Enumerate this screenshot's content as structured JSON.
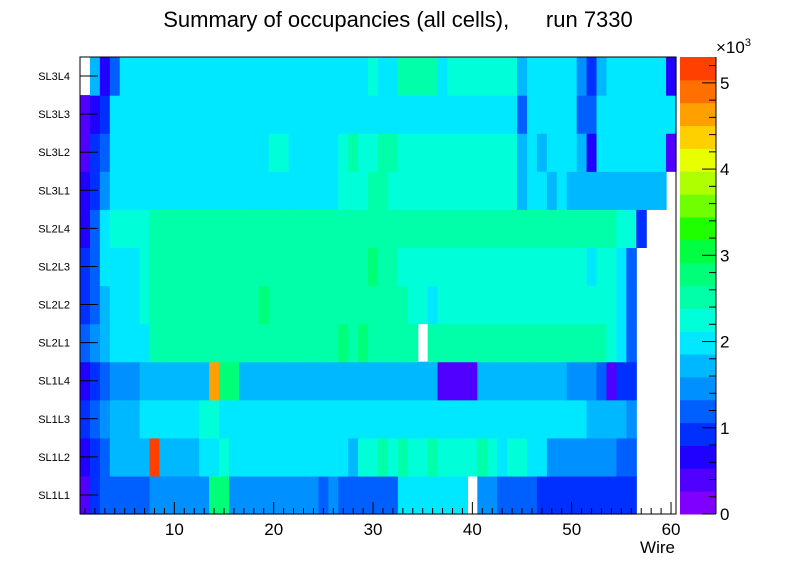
{
  "chart_data": {
    "type": "heatmap",
    "title": "Summary of occupancies (all cells),      run 7330",
    "xlabel": "Wire",
    "ylabel": "",
    "x_range": [
      0.5,
      60.5
    ],
    "x_ticks": [
      "10",
      "20",
      "30",
      "40",
      "50",
      "60"
    ],
    "x_tick_values": [
      10,
      20,
      30,
      40,
      50,
      60
    ],
    "layers": [
      "SL1L1",
      "SL1L2",
      "SL1L3",
      "SL1L4",
      "SL2L1",
      "SL2L2",
      "SL2L3",
      "SL2L4",
      "SL3L1",
      "SL3L2",
      "SL3L3",
      "SL3L4"
    ],
    "z_range": [
      0,
      5300
    ],
    "z_multiplier": "×10",
    "z_exponent": "3",
    "z_ticks": [
      "0",
      "1",
      "2",
      "3",
      "4",
      "5"
    ],
    "z_tick_values": [
      0,
      1000,
      2000,
      3000,
      4000,
      5000
    ],
    "palette": [
      "#8000ff",
      "#5000ff",
      "#2000ff",
      "#0030ff",
      "#0060ff",
      "#0090ff",
      "#00b8ff",
      "#00e8ff",
      "#00ffd8",
      "#00ffa8",
      "#00ff78",
      "#00ff40",
      "#20ff00",
      "#70ff00",
      "#b0ff00",
      "#e8ff00",
      "#ffd000",
      "#ffa000",
      "#ff7000",
      "#ff4000"
    ],
    "grid": false,
    "values": [
      [
        300,
        800,
        1300,
        1300,
        1300,
        1100,
        1200,
        1400,
        1400,
        1400,
        1400,
        1400,
        1500,
        2900,
        2900,
        1400,
        1400,
        1400,
        1400,
        1400,
        1400,
        1400,
        1400,
        1400,
        1300,
        1400,
        1300,
        1300,
        1300,
        1300,
        1200,
        1300,
        2100,
        2100,
        2100,
        2100,
        2100,
        2100,
        2100,
        null,
        1500,
        1500,
        1100,
        1100,
        1100,
        1100,
        800,
        800,
        800,
        800,
        800,
        800,
        800,
        800,
        800,
        800,
        null,
        null,
        null,
        null
      ],
      [
        700,
        1000,
        1200,
        1600,
        1600,
        1600,
        1600,
        5200,
        1600,
        1600,
        1600,
        1600,
        2000,
        2100,
        2300,
        2100,
        2100,
        2100,
        2100,
        2100,
        2100,
        2100,
        2100,
        2100,
        2100,
        1900,
        2100,
        1800,
        2300,
        2200,
        2400,
        2300,
        2400,
        2300,
        2300,
        2400,
        2300,
        2300,
        2300,
        2200,
        2400,
        2300,
        2100,
        2300,
        2200,
        2100,
        2000,
        1400,
        1400,
        1400,
        1400,
        1400,
        1400,
        1400,
        1200,
        1200,
        null,
        null,
        null,
        null
      ],
      [
        800,
        1100,
        1400,
        1700,
        1700,
        1700,
        2000,
        2000,
        2000,
        2000,
        2000,
        2000,
        2200,
        2200,
        1900,
        1900,
        1900,
        1900,
        2000,
        2000,
        2000,
        2000,
        1900,
        1900,
        1900,
        2000,
        2000,
        2000,
        2000,
        2000,
        2000,
        2000,
        2000,
        2000,
        2000,
        2000,
        2000,
        2000,
        2000,
        2000,
        2000,
        2000,
        2000,
        2000,
        2000,
        2000,
        2000,
        1900,
        1900,
        1900,
        1900,
        1600,
        1600,
        1600,
        1600,
        1400,
        null,
        null,
        null,
        null
      ],
      [
        700,
        1000,
        1200,
        1500,
        1500,
        1500,
        1700,
        1700,
        1700,
        1700,
        1700,
        1700,
        1700,
        4700,
        2800,
        2800,
        1800,
        1800,
        1800,
        1800,
        1800,
        1800,
        1800,
        1800,
        1800,
        1700,
        1800,
        1800,
        1700,
        1800,
        1800,
        1800,
        1800,
        1700,
        1800,
        1800,
        400,
        400,
        400,
        400,
        1800,
        1800,
        1800,
        1800,
        1800,
        1800,
        1700,
        1700,
        1700,
        1400,
        1400,
        1400,
        1200,
        500,
        1000,
        1000,
        null,
        null,
        null,
        null
      ],
      [
        1100,
        1500,
        1800,
        1900,
        1900,
        1900,
        2000,
        2500,
        2500,
        2500,
        2500,
        2500,
        2500,
        2500,
        2500,
        2500,
        2500,
        2500,
        2500,
        2500,
        2500,
        2500,
        2500,
        2500,
        2500,
        2500,
        2900,
        2500,
        2700,
        2500,
        2500,
        2500,
        2500,
        2500,
        null,
        2500,
        2500,
        2500,
        2500,
        2500,
        2500,
        2500,
        2500,
        2500,
        2500,
        2500,
        2500,
        2500,
        2500,
        2500,
        2500,
        2500,
        2500,
        2300,
        2000,
        1200,
        null,
        null,
        null,
        null
      ],
      [
        900,
        1300,
        1700,
        2000,
        2000,
        2000,
        2300,
        2500,
        2500,
        2500,
        2500,
        2500,
        2500,
        2500,
        2500,
        2500,
        2500,
        2500,
        2900,
        2500,
        2500,
        2500,
        2500,
        2500,
        2500,
        2500,
        2500,
        2500,
        2500,
        2500,
        2500,
        2500,
        2500,
        2300,
        2300,
        1900,
        2300,
        2300,
        2300,
        2300,
        2300,
        2300,
        2300,
        2300,
        2300,
        2300,
        2300,
        2300,
        2300,
        2300,
        2300,
        2300,
        2300,
        2200,
        1900,
        1100,
        null,
        null,
        null,
        null
      ],
      [
        800,
        1300,
        1900,
        2100,
        2100,
        2100,
        2300,
        2400,
        2500,
        2500,
        2500,
        2500,
        2500,
        2500,
        2500,
        2500,
        2500,
        2500,
        2500,
        2500,
        2500,
        2500,
        2500,
        2500,
        2500,
        2500,
        2500,
        2500,
        2500,
        2900,
        2500,
        2500,
        2300,
        2300,
        2300,
        2200,
        2200,
        2200,
        2200,
        2200,
        2200,
        2200,
        2200,
        2200,
        2200,
        2200,
        2200,
        2200,
        2200,
        2200,
        2200,
        2100,
        2300,
        2200,
        1900,
        1100,
        null,
        null,
        null,
        null
      ],
      [
        700,
        1200,
        1900,
        2300,
        2300,
        2300,
        2300,
        2500,
        2500,
        2500,
        2500,
        2500,
        2500,
        2500,
        2500,
        2500,
        2500,
        2500,
        2500,
        2500,
        2500,
        2500,
        2500,
        2500,
        2500,
        2500,
        2500,
        2500,
        2500,
        2500,
        2500,
        2500,
        2500,
        2500,
        2500,
        2500,
        2500,
        2500,
        2500,
        2500,
        2500,
        2500,
        2500,
        2500,
        2500,
        2500,
        2500,
        2500,
        2500,
        2500,
        2500,
        2500,
        2500,
        2500,
        2300,
        2300,
        1000,
        null,
        null,
        null
      ],
      [
        700,
        1000,
        1400,
        1900,
        1900,
        2000,
        2000,
        2000,
        2000,
        2000,
        2000,
        2000,
        2000,
        2000,
        2000,
        2000,
        2000,
        2000,
        2000,
        2000,
        2000,
        2000,
        2000,
        2000,
        2000,
        2000,
        2300,
        2300,
        2200,
        2500,
        2500,
        2200,
        2200,
        2200,
        2200,
        2200,
        2200,
        2200,
        2200,
        2200,
        2200,
        2200,
        2200,
        2200,
        1800,
        2000,
        2000,
        1700,
        2000,
        1700,
        1700,
        1700,
        1700,
        1700,
        1700,
        1700,
        1700,
        1700,
        1700,
        null
      ],
      [
        500,
        800,
        1200,
        2100,
        2100,
        2100,
        2100,
        2100,
        2100,
        2100,
        2100,
        2100,
        1900,
        2100,
        2100,
        2100,
        2100,
        2100,
        2100,
        2300,
        2300,
        2100,
        2100,
        2100,
        2100,
        2100,
        2300,
        2400,
        2200,
        2200,
        2400,
        2400,
        2200,
        2200,
        2200,
        2200,
        2300,
        2200,
        2200,
        2300,
        2200,
        2200,
        2200,
        2200,
        1800,
        2000,
        1700,
        2000,
        2000,
        2000,
        1700,
        700,
        2000,
        2000,
        2000,
        2000,
        2000,
        2000,
        2000,
        500
      ],
      [
        400,
        600,
        1000,
        1900,
        2100,
        2100,
        2100,
        2100,
        2100,
        2100,
        2100,
        2100,
        2100,
        2100,
        2100,
        2100,
        2100,
        2100,
        2100,
        2100,
        2100,
        2100,
        2100,
        2100,
        2100,
        2100,
        2100,
        2100,
        2100,
        2100,
        2100,
        2100,
        2100,
        2100,
        2100,
        2100,
        2100,
        2100,
        2100,
        2100,
        2100,
        2100,
        2100,
        2100,
        1200,
        2000,
        2000,
        2000,
        2000,
        2000,
        1300,
        1300,
        2000,
        2000,
        2000,
        2000,
        2000,
        2000,
        2000,
        2000
      ],
      [
        null,
        1700,
        700,
        1200,
        2100,
        2100,
        2100,
        2100,
        2100,
        2100,
        2100,
        2100,
        2100,
        2100,
        2100,
        2100,
        2100,
        2100,
        2100,
        2100,
        2100,
        2100,
        2100,
        2100,
        2100,
        2100,
        2100,
        2100,
        2100,
        2300,
        2100,
        2100,
        2400,
        2400,
        2400,
        2400,
        2100,
        2300,
        2300,
        2300,
        2300,
        2300,
        2300,
        2300,
        1700,
        2000,
        2000,
        2000,
        2000,
        2000,
        1500,
        800,
        1800,
        2000,
        2000,
        2000,
        2000,
        2000,
        2000,
        700
      ]
    ]
  }
}
